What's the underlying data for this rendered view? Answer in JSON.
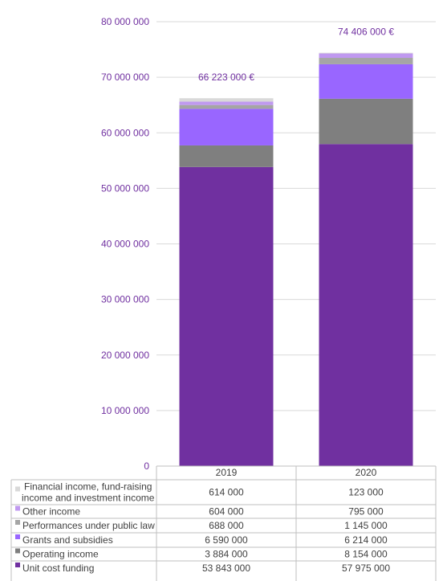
{
  "chart_data": {
    "type": "bar",
    "stacked": true,
    "categories": [
      "2019",
      "2020"
    ],
    "totals": [
      "66 223 000 €",
      "74 406 000 €"
    ],
    "ylim": [
      0,
      80000000
    ],
    "yticks": [
      0,
      10000000,
      20000000,
      30000000,
      40000000,
      50000000,
      60000000,
      70000000,
      80000000
    ],
    "ytick_labels": [
      "0",
      "10 000 000",
      "20 000 000",
      "30 000 000",
      "40 000 000",
      "50 000 000",
      "60 000 000",
      "70 000 000",
      "80 000 000"
    ],
    "grid": true,
    "legend_placement": "bottom data table",
    "series": [
      {
        "name": "Unit cost funding",
        "values": [
          53843000,
          57975000
        ],
        "labels": [
          "53 843 000",
          "57 975 000"
        ],
        "color": "#7030A0"
      },
      {
        "name": "Operating income",
        "values": [
          3884000,
          8154000
        ],
        "labels": [
          "3 884 000",
          "8 154 000"
        ],
        "color": "#7F7F7F"
      },
      {
        "name": "Grants and subsidies",
        "values": [
          6590000,
          6214000
        ],
        "labels": [
          "6 590 000",
          "6 214 000"
        ],
        "color": "#9966FF"
      },
      {
        "name": "Performances under public law",
        "values": [
          688000,
          1145000
        ],
        "labels": [
          "688 000",
          "1 145 000"
        ],
        "color": "#A5A5A5"
      },
      {
        "name": "Other income",
        "values": [
          604000,
          795000
        ],
        "labels": [
          "604 000",
          "795 000"
        ],
        "color": "#C099F0"
      },
      {
        "name": "Financial income, fund-raising income and investment income",
        "name_lines": [
          "Financial income, fund-raising",
          "income and investment income"
        ],
        "values": [
          614000,
          123000
        ],
        "labels": [
          "614 000",
          "123 000"
        ],
        "color": "#D9D9D9"
      }
    ],
    "colors": {
      "axis_text": "#7030A0",
      "grid": "#D9D9D9",
      "table_border": "#BFBFBF",
      "table_text": "#404040"
    }
  }
}
